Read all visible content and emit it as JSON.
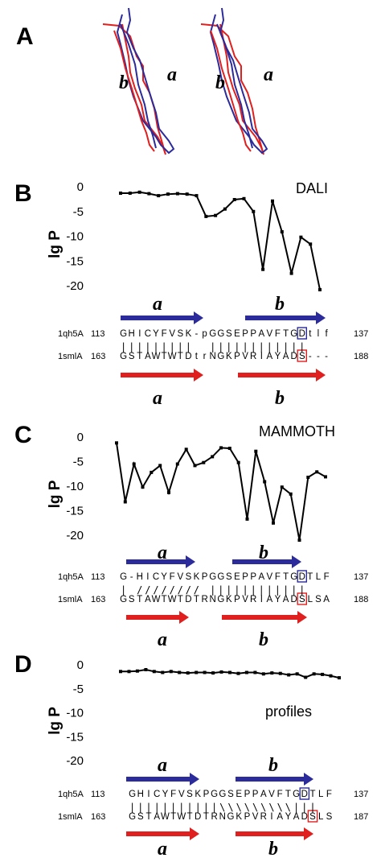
{
  "colors": {
    "blue": "#2b2b9b",
    "red": "#e01f1f",
    "black": "#000000"
  },
  "panelA": {
    "letter": "A",
    "labels": [
      "b",
      "a",
      "b",
      "a"
    ]
  },
  "chart_data": [
    {
      "panel": "B",
      "type": "line",
      "method": "DALI",
      "ylabel": "lg P",
      "ylim": [
        -21,
        0
      ],
      "yticks": [
        0,
        -5,
        -10,
        -15,
        -20
      ],
      "values": [
        -1.3,
        -1.3,
        -1.1,
        -1.4,
        -1.8,
        -1.5,
        -1.4,
        -1.5,
        -1.8,
        -6.0,
        -5.8,
        -4.5,
        -2.6,
        -2.4,
        -5.0,
        -16.7,
        -2.9,
        -9.1,
        -17.5,
        -10.2,
        -11.6,
        -20.8
      ]
    },
    {
      "panel": "C",
      "type": "line",
      "method": "MAMMOTH",
      "ylabel": "lg P",
      "ylim": [
        -21,
        0
      ],
      "yticks": [
        0,
        -5,
        -10,
        -15,
        -20
      ],
      "values": [
        -1.2,
        -13.2,
        -5.5,
        -10.2,
        -7.2,
        -5.8,
        -11.3,
        -5.5,
        -2.5,
        -5.8,
        -5.2,
        -4.0,
        -2.2,
        -2.3,
        -5.2,
        -16.7,
        -2.9,
        -9.1,
        -17.5,
        -10.2,
        -11.6,
        -21.0,
        -8.2,
        -7.1,
        -8.1
      ]
    },
    {
      "panel": "D",
      "type": "line",
      "method": "profiles",
      "ylabel": "lg P",
      "ylim": [
        -22,
        0
      ],
      "yticks": [
        0,
        -5,
        -10,
        -15,
        -20
      ],
      "values": [
        -1.4,
        -1.4,
        -1.3,
        -1.0,
        -1.4,
        -1.6,
        -1.4,
        -1.6,
        -1.7,
        -1.6,
        -1.6,
        -1.7,
        -1.5,
        -1.6,
        -1.8,
        -1.6,
        -1.6,
        -1.9,
        -1.7,
        -1.8,
        -2.1,
        -1.9,
        -2.6,
        -1.9,
        -2.0,
        -2.3,
        -2.7
      ]
    }
  ],
  "alignments": [
    {
      "panel": "B",
      "top": {
        "name": "1qh5A",
        "start": "113",
        "seq": [
          "G",
          "H",
          "I",
          "C",
          "Y",
          "F",
          "V",
          "S",
          "K",
          "-",
          "p",
          "G",
          "G",
          "S",
          "E",
          "P",
          "P",
          "A",
          "V",
          "F",
          "T",
          "G",
          "D",
          "t",
          "l",
          "f"
        ],
        "boxed": 22,
        "end": "137"
      },
      "bottom": {
        "name": "1smlA",
        "start": "163",
        "seq": [
          "G",
          "S",
          "T",
          "A",
          "W",
          "T",
          "W",
          "T",
          "D",
          "t",
          "r",
          "N",
          "G",
          "K",
          "P",
          "V",
          "R",
          "I",
          "A",
          "Y",
          "A",
          "D",
          "S",
          "-",
          "-",
          "-"
        ],
        "boxed": 22,
        "end": "188"
      },
      "links": [
        "|",
        "|",
        "|",
        "|",
        "|",
        "|",
        "|",
        "|",
        "|",
        " ",
        " ",
        "|",
        "|",
        "|",
        "|",
        "|",
        "|",
        "|",
        "|",
        "|",
        "|",
        "|",
        "|",
        " ",
        " ",
        " "
      ],
      "arrows": [
        "a",
        "b",
        "a",
        "b"
      ]
    },
    {
      "panel": "C",
      "top": {
        "name": "1qh5A",
        "start": "113",
        "seq": [
          "G",
          "-",
          "H",
          "I",
          "C",
          "Y",
          "F",
          "V",
          "S",
          "K",
          "P",
          "G",
          "G",
          "S",
          "E",
          "P",
          "P",
          "A",
          "V",
          "F",
          "T",
          "G",
          "D",
          "T",
          "L",
          "F"
        ],
        "boxed": 22,
        "end": "137"
      },
      "bottom": {
        "name": "1smlA",
        "start": "163",
        "seq": [
          "G",
          "S",
          "T",
          "A",
          "W",
          "T",
          "W",
          "T",
          "D",
          "T",
          "R",
          "N",
          "G",
          "K",
          "P",
          "V",
          "R",
          "I",
          "A",
          "Y",
          "A",
          "D",
          "S",
          "L",
          "S",
          "A"
        ],
        "boxed": 22,
        "end": "188"
      },
      "links": [
        "|",
        " ",
        "/",
        "/",
        "/",
        "/",
        "/",
        "/",
        "/",
        "/",
        " ",
        "|",
        "|",
        "|",
        "|",
        "|",
        "|",
        "|",
        "|",
        "|",
        "|",
        "|",
        "|",
        " ",
        " ",
        " "
      ],
      "arrows": [
        "a",
        "b",
        "a",
        "b"
      ]
    },
    {
      "panel": "D",
      "top": {
        "name": "1qh5A",
        "start": "113",
        "seq": [
          "G",
          "H",
          "I",
          "C",
          "Y",
          "F",
          "V",
          "S",
          "K",
          "P",
          "G",
          "G",
          "S",
          "E",
          "P",
          "P",
          "A",
          "V",
          "F",
          "T",
          "G",
          "D",
          "T",
          "L",
          "F"
        ],
        "boxed": 21,
        "end": "137"
      },
      "bottom": {
        "name": "1smlA",
        "start": "163",
        "seq": [
          "G",
          "S",
          "T",
          "A",
          "W",
          "T",
          "W",
          "T",
          "D",
          "T",
          "R",
          "N",
          "G",
          "K",
          "P",
          "V",
          "R",
          "I",
          "A",
          "Y",
          "A",
          "D",
          "S",
          "L",
          "S"
        ],
        "boxed": 22,
        "end": "187"
      },
      "links": [
        "|",
        "|",
        "|",
        "|",
        "|",
        "|",
        "|",
        "|",
        "|",
        "|",
        "|",
        "\\",
        "\\",
        "\\",
        "\\",
        "\\",
        "\\",
        "\\",
        "\\",
        "\\",
        "|",
        "|",
        "|",
        " ",
        " "
      ],
      "arrows": [
        "a",
        "b",
        "a",
        "b"
      ]
    }
  ]
}
